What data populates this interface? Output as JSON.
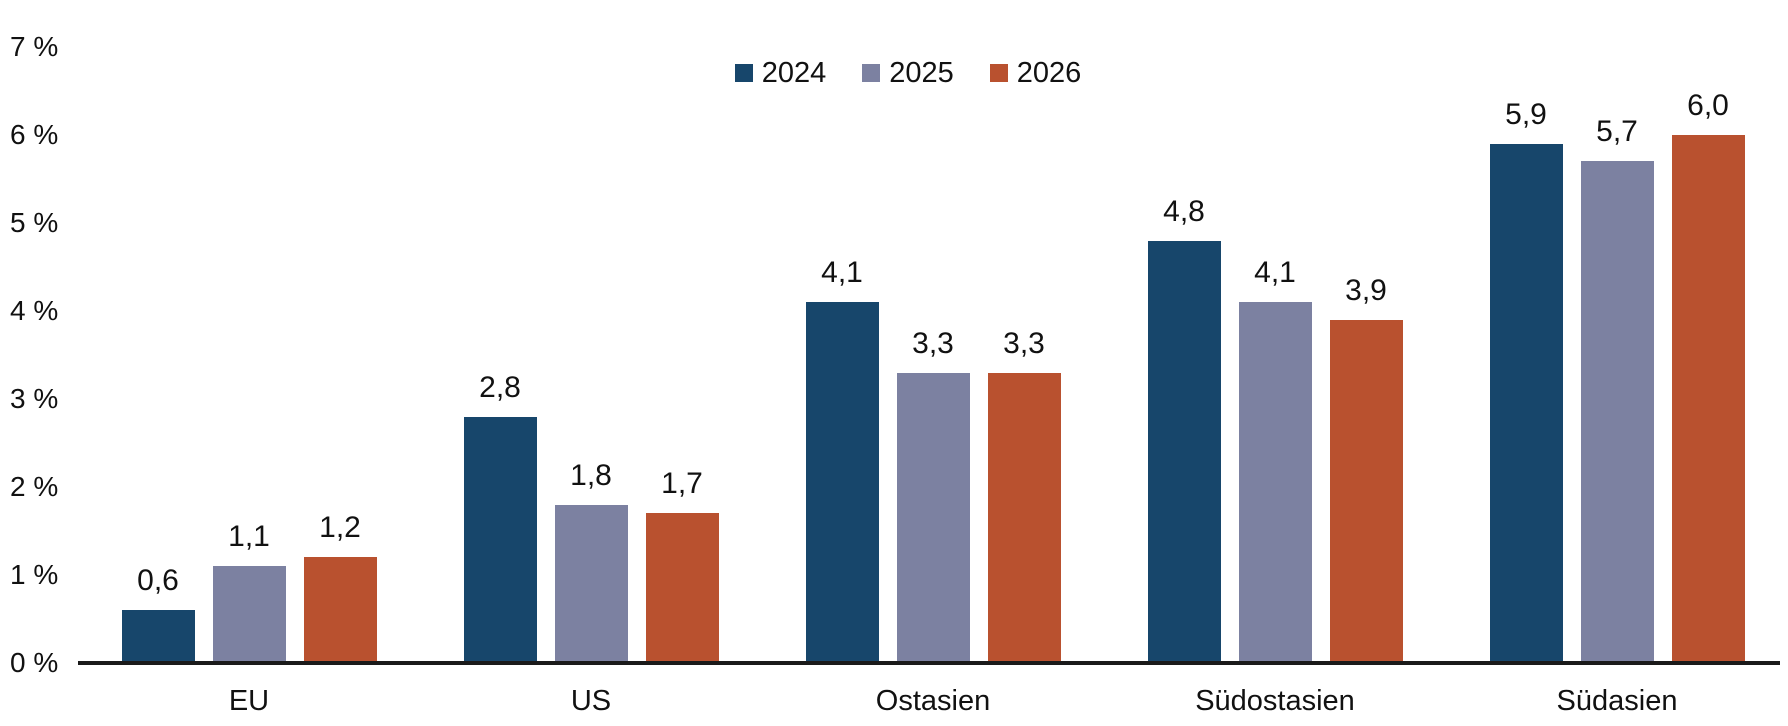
{
  "chart_data": {
    "type": "bar",
    "title": "",
    "xlabel": "",
    "ylabel": "",
    "categories": [
      "EU",
      "US",
      "Ostasien",
      "Südostasien",
      "Südasien"
    ],
    "series": [
      {
        "name": "2024",
        "color": "#17466B",
        "values": [
          0.6,
          2.8,
          4.1,
          4.8,
          5.9
        ],
        "labels": [
          "0,6",
          "2,8",
          "4,1",
          "4,8",
          "5,9"
        ]
      },
      {
        "name": "2025",
        "color": "#7C81A1",
        "values": [
          1.1,
          1.8,
          3.3,
          4.1,
          5.7
        ],
        "labels": [
          "1,1",
          "1,8",
          "3,3",
          "4,1",
          "5,7"
        ]
      },
      {
        "name": "2026",
        "color": "#B9512F",
        "values": [
          1.2,
          1.7,
          3.3,
          3.9,
          6.0
        ],
        "labels": [
          "1,2",
          "1,7",
          "3,3",
          "3,9",
          "6,0"
        ]
      }
    ],
    "ylim": [
      0,
      7
    ],
    "yticks": [
      "0 %",
      "1 %",
      "2 %",
      "3 %",
      "4 %",
      "5 %",
      "6 %",
      "7 %"
    ],
    "decimal_separator": ",",
    "grid": false,
    "legend_position": "top-center",
    "axis_color": "#1a1a1a",
    "text_color": "#111111"
  }
}
